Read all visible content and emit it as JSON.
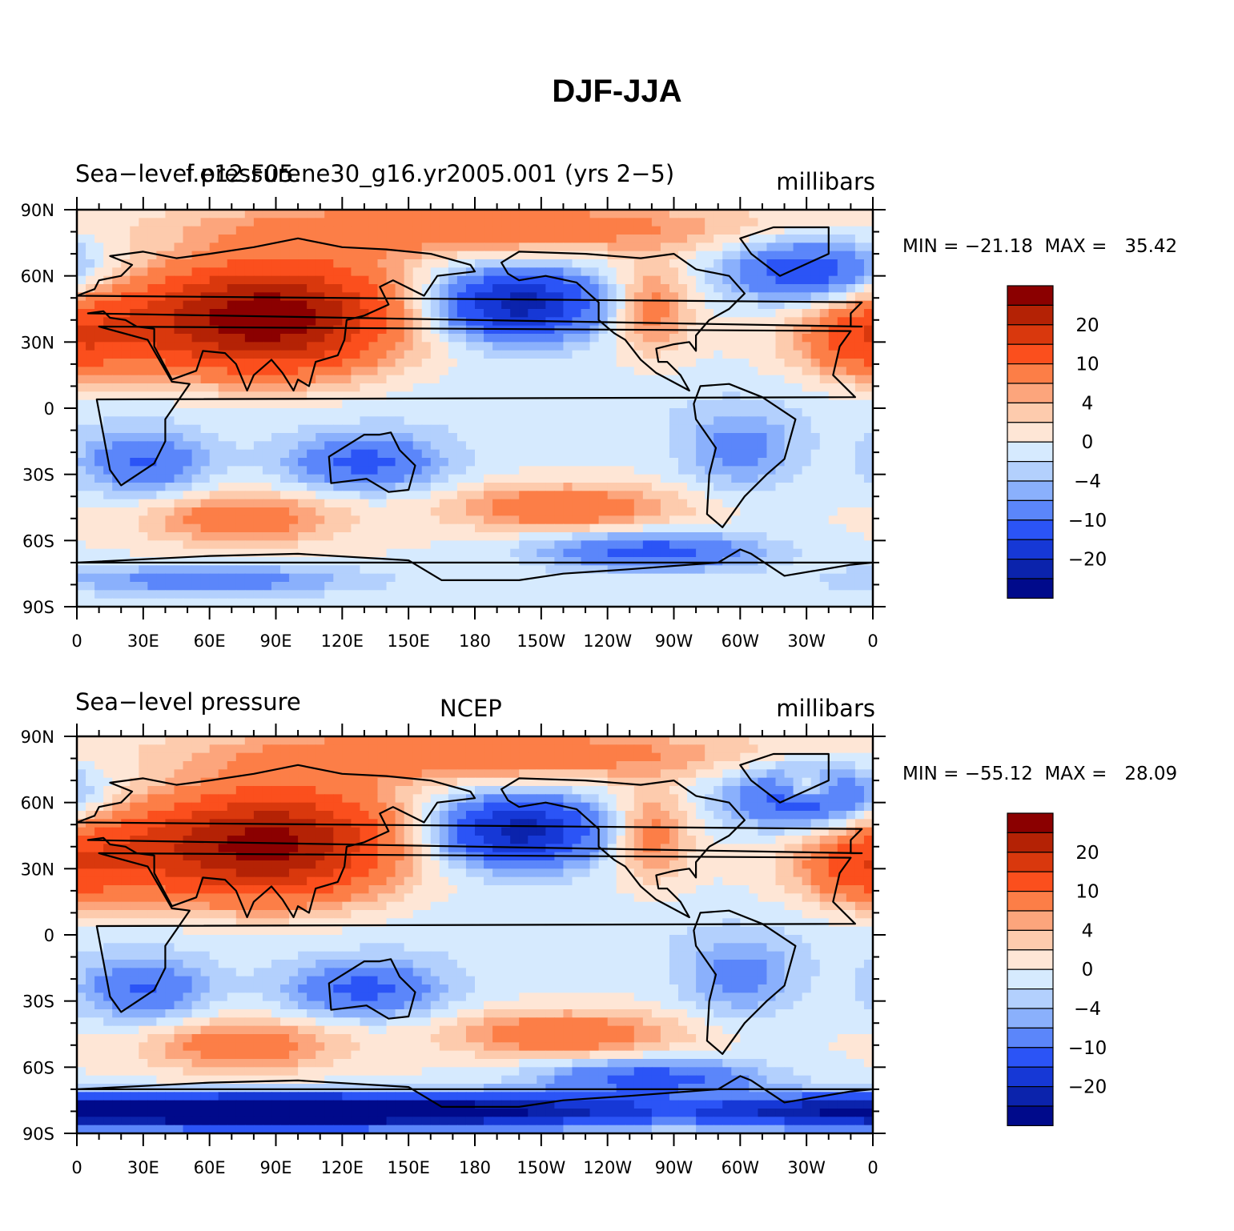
{
  "title": "DJF-JJA",
  "panels": [
    {
      "left_label": "Sea−level pressure",
      "center_label": "f.e12.F05.ne30_g16.yr2005.001 (yrs 2−5)",
      "right_label": "millibars",
      "minmax": "MIN = −21.18  MAX =   35.42",
      "field": "model"
    },
    {
      "left_label": "Sea−level pressure",
      "center_label": "NCEP",
      "right_label": "millibars",
      "minmax": "MIN = −55.12  MAX =   28.09",
      "field": "obs"
    }
  ],
  "axes": {
    "x_ticks": [
      "0",
      "30E",
      "60E",
      "90E",
      "120E",
      "150E",
      "180",
      "150W",
      "120W",
      "90W",
      "60W",
      "30W",
      "0"
    ],
    "y_ticks": [
      "90N",
      "60N",
      "30N",
      "0",
      "30S",
      "60S",
      "90S"
    ]
  },
  "colorbar": {
    "colors": [
      "#8b0000",
      "#b42205",
      "#d9380d",
      "#fb4f1d",
      "#fc7e47",
      "#fca57c",
      "#fdcbad",
      "#fee6d6",
      "#d6eafe",
      "#b3d0fd",
      "#8ab0fc",
      "#5b86fa",
      "#2b54f6",
      "#1638d6",
      "#0b23ac",
      "#000a8b"
    ],
    "labels": [
      "20",
      "10",
      "4",
      "0",
      "−4",
      "−10",
      "−20"
    ]
  }
}
